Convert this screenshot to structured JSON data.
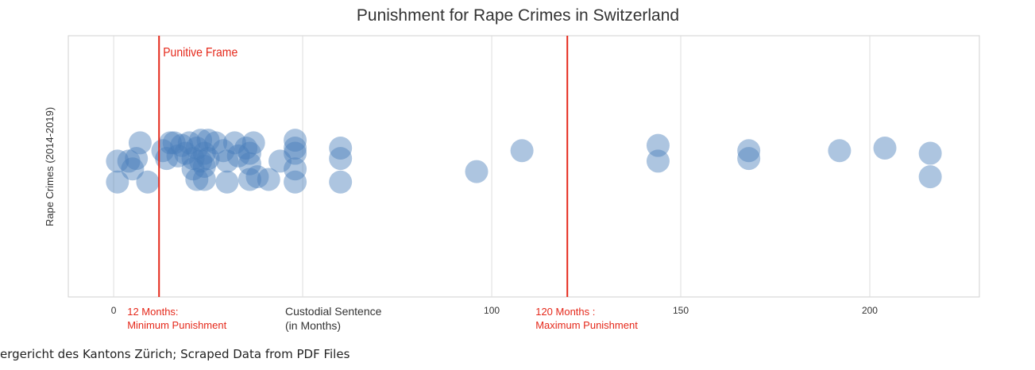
{
  "chart_data": {
    "type": "scatter",
    "title": "Punishment for Rape Crimes in Switzerland",
    "ylabel": "Rape Crimes (2014-2019)",
    "xlabel_lines": [
      "Custodial Sentence",
      "(in Months)"
    ],
    "xlim": [
      -12,
      229
    ],
    "xticks": [
      0,
      100,
      150,
      200
    ],
    "grid": true,
    "point_color": "#4a7ebb",
    "reference_color": "#e5281a",
    "reference_lines": [
      {
        "x": 12,
        "label": "Punitive Frame",
        "caption": [
          "12 Months:",
          "Minimum Punishment"
        ]
      },
      {
        "x": 120,
        "label": "",
        "caption": [
          "120 Months :",
          "Maximum Punishment"
        ]
      }
    ],
    "points": [
      {
        "x": 1,
        "y": 0.44
      },
      {
        "x": 1,
        "y": 0.52
      },
      {
        "x": 4,
        "y": 0.52
      },
      {
        "x": 5,
        "y": 0.49
      },
      {
        "x": 6,
        "y": 0.53
      },
      {
        "x": 7,
        "y": 0.59
      },
      {
        "x": 9,
        "y": 0.44
      },
      {
        "x": 13,
        "y": 0.56
      },
      {
        "x": 14,
        "y": 0.53
      },
      {
        "x": 15,
        "y": 0.59
      },
      {
        "x": 16,
        "y": 0.59
      },
      {
        "x": 17,
        "y": 0.54
      },
      {
        "x": 18,
        "y": 0.58
      },
      {
        "x": 19,
        "y": 0.55
      },
      {
        "x": 20,
        "y": 0.59
      },
      {
        "x": 21,
        "y": 0.49
      },
      {
        "x": 21,
        "y": 0.53
      },
      {
        "x": 22,
        "y": 0.45
      },
      {
        "x": 22,
        "y": 0.57
      },
      {
        "x": 23,
        "y": 0.6
      },
      {
        "x": 23,
        "y": 0.52
      },
      {
        "x": 24,
        "y": 0.55
      },
      {
        "x": 24,
        "y": 0.5
      },
      {
        "x": 24,
        "y": 0.45
      },
      {
        "x": 25,
        "y": 0.6
      },
      {
        "x": 25,
        "y": 0.53
      },
      {
        "x": 27,
        "y": 0.59
      },
      {
        "x": 29,
        "y": 0.56
      },
      {
        "x": 30,
        "y": 0.52
      },
      {
        "x": 30,
        "y": 0.44
      },
      {
        "x": 32,
        "y": 0.59
      },
      {
        "x": 33,
        "y": 0.54
      },
      {
        "x": 35,
        "y": 0.57
      },
      {
        "x": 36,
        "y": 0.51
      },
      {
        "x": 36,
        "y": 0.55
      },
      {
        "x": 36,
        "y": 0.45
      },
      {
        "x": 37,
        "y": 0.59
      },
      {
        "x": 38,
        "y": 0.46
      },
      {
        "x": 41,
        "y": 0.45
      },
      {
        "x": 44,
        "y": 0.52
      },
      {
        "x": 48,
        "y": 0.6
      },
      {
        "x": 48,
        "y": 0.55
      },
      {
        "x": 48,
        "y": 0.57
      },
      {
        "x": 48,
        "y": 0.49
      },
      {
        "x": 48,
        "y": 0.44
      },
      {
        "x": 60,
        "y": 0.57
      },
      {
        "x": 60,
        "y": 0.53
      },
      {
        "x": 60,
        "y": 0.44
      },
      {
        "x": 96,
        "y": 0.48
      },
      {
        "x": 108,
        "y": 0.56
      },
      {
        "x": 144,
        "y": 0.58
      },
      {
        "x": 144,
        "y": 0.52
      },
      {
        "x": 168,
        "y": 0.56
      },
      {
        "x": 168,
        "y": 0.53
      },
      {
        "x": 192,
        "y": 0.56
      },
      {
        "x": 204,
        "y": 0.57
      },
      {
        "x": 216,
        "y": 0.55
      },
      {
        "x": 216,
        "y": 0.46
      }
    ]
  },
  "source_text": "ergericht des Kantons Zürich; Scraped Data from PDF Files"
}
